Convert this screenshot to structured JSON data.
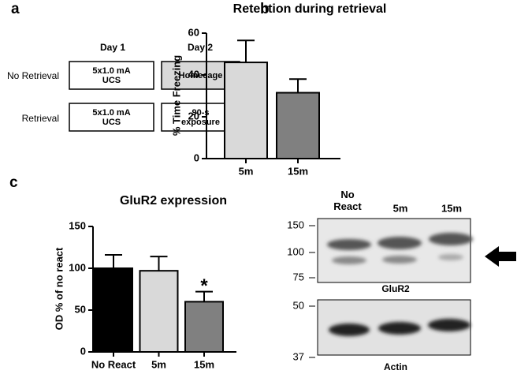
{
  "panel_labels": [
    "a",
    "b",
    "c"
  ],
  "design": {
    "columns": [
      "Day 1",
      "Day 2"
    ],
    "rows": [
      {
        "label": "No Retrieval",
        "cells": [
          "5x1.0 mA UCS",
          "Homecage"
        ]
      },
      {
        "label": "Retrieval",
        "cells": [
          "5x1.0 mA UCS",
          "90-s exposure"
        ]
      }
    ]
  },
  "chart_data": [
    {
      "type": "bar",
      "title": "Retention during retrieval",
      "y_label": "% Time Freezing",
      "categories": [
        "5m",
        "15m"
      ],
      "values": [
        46,
        31.5
      ],
      "errors": [
        10.5,
        6.5
      ],
      "colors": [
        "#d9d9d9",
        "#808080"
      ],
      "ylim": [
        0,
        60
      ],
      "yticks": [
        0,
        20,
        40,
        60
      ]
    },
    {
      "type": "bar",
      "title": "GluR2 expression",
      "y_label": "OD % of no react",
      "categories": [
        "No React",
        "5m",
        "15m"
      ],
      "values": [
        100,
        97,
        60
      ],
      "errors": [
        16,
        17,
        12
      ],
      "colors": [
        "#000000",
        "#d9d9d9",
        "#808080"
      ],
      "ylim": [
        0,
        150
      ],
      "yticks": [
        0,
        50,
        100,
        150
      ],
      "annotations": [
        {
          "category": 2,
          "text": "*"
        }
      ]
    }
  ],
  "blot": {
    "lanes": [
      "No React",
      "5m",
      "15m"
    ],
    "glur2": {
      "label": "GluR2",
      "markers": [
        150,
        100,
        75
      ]
    },
    "actin": {
      "label": "Actin",
      "markers": [
        50,
        37
      ]
    }
  }
}
